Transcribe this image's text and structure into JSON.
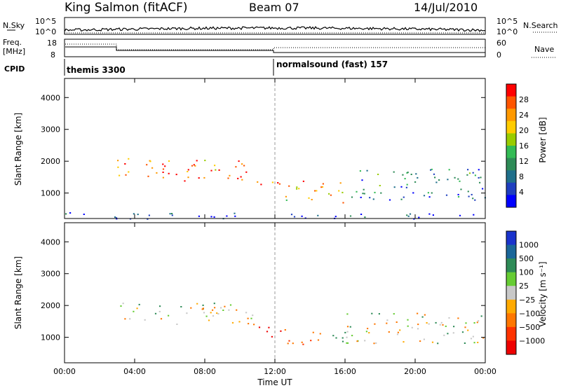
{
  "header": {
    "station": "King Salmon (fitACF)",
    "beam": "Beam 07",
    "date": "14/Jul/2010"
  },
  "summary_panels": {
    "nsky_label": "N.Sky",
    "nsearch_label": "N.Search",
    "noise_ticks": [
      "10^5",
      "10^0"
    ],
    "freq_label_1": "Freq.",
    "freq_label_2": "[MHz]",
    "freq_ticks": [
      "18",
      "8"
    ],
    "nave_ticks": [
      "60",
      "0"
    ],
    "nave_label": "Nave",
    "cpid_label": "CPID",
    "cpid_segments": [
      {
        "name": "themis 3300",
        "start_hour": 0,
        "end_hour": 12
      },
      {
        "name": "normalsound (fast) 157",
        "start_hour": 12,
        "end_hour": 24
      }
    ]
  },
  "colorbars": {
    "power_label": "Power [dB]",
    "power_ticks": [
      "28",
      "24",
      "20",
      "16",
      "12",
      "8",
      "4"
    ],
    "power_colors": [
      "#ff0000",
      "#ff5500",
      "#ff9900",
      "#ffcc00",
      "#99cc00",
      "#33bb55",
      "#2e8b57",
      "#1f6f8b",
      "#1f3fbf",
      "#0000ff"
    ],
    "velocity_label": "Velocity [m s⁻¹]",
    "velocity_ticks": [
      "1000",
      "500",
      "100",
      "25",
      "−25",
      "−100",
      "−500",
      "−1000"
    ],
    "velocity_colors": [
      "#1a33cc",
      "#1a6699",
      "#2e8b57",
      "#66cc33",
      "#c8c8c8",
      "#ffaa00",
      "#ff7700",
      "#ff3300",
      "#ee0000"
    ]
  },
  "chart_data": [
    {
      "type": "heatmap",
      "panel": "power",
      "ylabel": "Slant Range [km]",
      "xlabel": "",
      "ylim": [
        200,
        4600
      ],
      "xlim": [
        0,
        24
      ],
      "yticks": [
        "1000",
        "2000",
        "3000",
        "4000"
      ],
      "xticks": [
        "00:00",
        "04:00",
        "08:00",
        "12:00",
        "16:00",
        "20:00",
        "00:00"
      ],
      "features": [
        {
          "start_hour": 3.0,
          "end_hour": 10.8,
          "range_km": [
            1400,
            2100
          ],
          "power_db": 26
        },
        {
          "start_hour": 10.8,
          "end_hour": 12.3,
          "range_km": [
            1000,
            1400
          ],
          "power_db": 28
        },
        {
          "start_hour": 12.5,
          "end_hour": 16.0,
          "range_km": [
            700,
            1400
          ],
          "power_db": 22
        },
        {
          "start_hour": 16.0,
          "end_hour": 24.0,
          "range_km": [
            800,
            1800
          ],
          "power_db": 10
        },
        {
          "start_hour": 0.0,
          "end_hour": 24.0,
          "range_km": [
            200,
            400
          ],
          "power_db": 6
        }
      ]
    },
    {
      "type": "heatmap",
      "panel": "velocity",
      "ylabel": "Slant Range [km]",
      "xlabel": "Time UT",
      "ylim": [
        200,
        4600
      ],
      "xlim": [
        0,
        24
      ],
      "yticks": [
        "1000",
        "2000",
        "3000",
        "4000"
      ],
      "xticks": [
        "00:00",
        "04:00",
        "08:00",
        "12:00",
        "16:00",
        "20:00",
        "00:00"
      ],
      "features": [
        {
          "start_hour": 3.0,
          "end_hour": 10.8,
          "range_km": [
            1400,
            2100
          ],
          "velocity": 0
        },
        {
          "start_hour": 10.8,
          "end_hour": 12.3,
          "range_km": [
            1000,
            1400
          ],
          "velocity": -900
        },
        {
          "start_hour": 12.5,
          "end_hour": 14.8,
          "range_km": [
            800,
            1300
          ],
          "velocity": -300
        },
        {
          "start_hour": 14.8,
          "end_hour": 16.0,
          "range_km": [
            800,
            1300
          ],
          "velocity": 200
        },
        {
          "start_hour": 16.0,
          "end_hour": 24.0,
          "range_km": [
            800,
            1800
          ],
          "velocity": 0
        }
      ]
    }
  ]
}
